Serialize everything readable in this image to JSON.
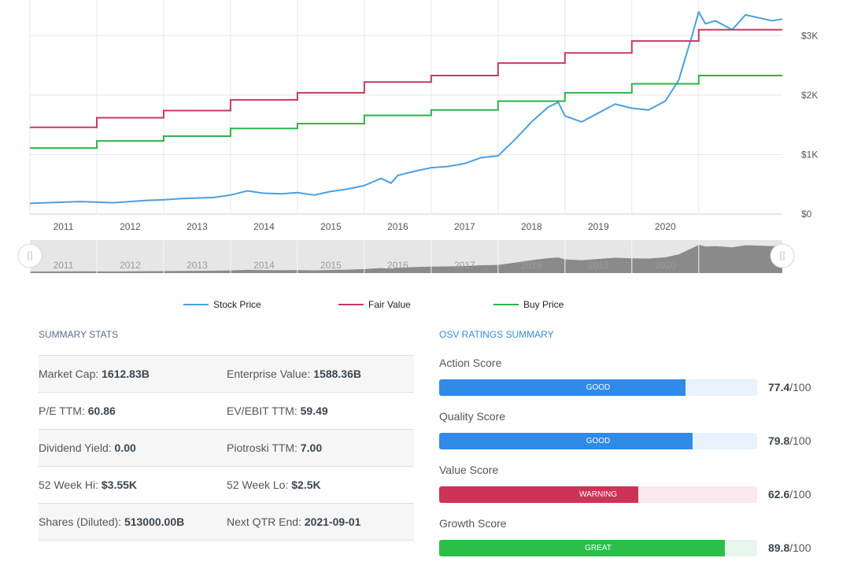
{
  "chart_data": {
    "type": "line",
    "x_ticks": [
      "2011",
      "2012",
      "2013",
      "2014",
      "2015",
      "2016",
      "2017",
      "2018",
      "2019",
      "2020"
    ],
    "y_ticks": [
      "$0",
      "$1K",
      "$2K",
      "$3K"
    ],
    "ylim": [
      0,
      3600
    ],
    "xlim": [
      2010.5,
      2021.75
    ],
    "legend_position": "bottom",
    "grid": true,
    "series": [
      {
        "name": "Stock Price",
        "color": "#4a9fe0",
        "points": [
          [
            2010.5,
            180
          ],
          [
            2010.75,
            190
          ],
          [
            2011.0,
            200
          ],
          [
            2011.25,
            210
          ],
          [
            2011.5,
            200
          ],
          [
            2011.75,
            190
          ],
          [
            2012.0,
            210
          ],
          [
            2012.25,
            230
          ],
          [
            2012.5,
            240
          ],
          [
            2012.75,
            260
          ],
          [
            2013.0,
            270
          ],
          [
            2013.25,
            280
          ],
          [
            2013.5,
            320
          ],
          [
            2013.75,
            390
          ],
          [
            2014.0,
            350
          ],
          [
            2014.25,
            340
          ],
          [
            2014.5,
            360
          ],
          [
            2014.75,
            320
          ],
          [
            2015.0,
            380
          ],
          [
            2015.25,
            420
          ],
          [
            2015.5,
            480
          ],
          [
            2015.75,
            600
          ],
          [
            2015.9,
            520
          ],
          [
            2016.0,
            650
          ],
          [
            2016.25,
            720
          ],
          [
            2016.5,
            780
          ],
          [
            2016.75,
            800
          ],
          [
            2017.0,
            850
          ],
          [
            2017.25,
            950
          ],
          [
            2017.5,
            980
          ],
          [
            2017.75,
            1250
          ],
          [
            2018.0,
            1550
          ],
          [
            2018.25,
            1800
          ],
          [
            2018.4,
            1880
          ],
          [
            2018.5,
            1650
          ],
          [
            2018.75,
            1550
          ],
          [
            2019.0,
            1700
          ],
          [
            2019.25,
            1850
          ],
          [
            2019.5,
            1780
          ],
          [
            2019.75,
            1750
          ],
          [
            2020.0,
            1900
          ],
          [
            2020.2,
            2250
          ],
          [
            2020.4,
            3000
          ],
          [
            2020.5,
            3400
          ],
          [
            2020.6,
            3200
          ],
          [
            2020.75,
            3250
          ],
          [
            2021.0,
            3100
          ],
          [
            2021.2,
            3350
          ],
          [
            2021.4,
            3300
          ],
          [
            2021.6,
            3250
          ],
          [
            2021.75,
            3280
          ]
        ]
      },
      {
        "name": "Fair Value",
        "color": "#c83a5e",
        "steps": [
          [
            2010.5,
            1460
          ],
          [
            2011.5,
            1620
          ],
          [
            2012.5,
            1740
          ],
          [
            2013.5,
            1920
          ],
          [
            2014.5,
            2040
          ],
          [
            2015.5,
            2220
          ],
          [
            2016.5,
            2330
          ],
          [
            2017.5,
            2540
          ],
          [
            2018.5,
            2710
          ],
          [
            2019.5,
            2910
          ],
          [
            2020.5,
            3100
          ]
        ]
      },
      {
        "name": "Buy Price",
        "color": "#2bb44a",
        "steps": [
          [
            2010.5,
            1110
          ],
          [
            2011.5,
            1230
          ],
          [
            2012.5,
            1310
          ],
          [
            2013.5,
            1440
          ],
          [
            2014.5,
            1520
          ],
          [
            2015.5,
            1660
          ],
          [
            2016.5,
            1750
          ],
          [
            2017.5,
            1900
          ],
          [
            2018.5,
            2040
          ],
          [
            2019.5,
            2190
          ],
          [
            2020.5,
            2330
          ]
        ]
      }
    ]
  },
  "legend": {
    "stock_price": "Stock Price",
    "fair_value": "Fair Value",
    "buy_price": "Buy Price"
  },
  "summary_stats": {
    "title": "SUMMARY STATS",
    "rows": [
      {
        "left_label": "Market Cap: ",
        "left_value": "1612.83B",
        "right_label": "Enterprise Value: ",
        "right_value": "1588.36B"
      },
      {
        "left_label": "P/E TTM: ",
        "left_value": "60.86",
        "right_label": "EV/EBIT TTM: ",
        "right_value": "59.49"
      },
      {
        "left_label": "Dividend Yield: ",
        "left_value": "0.00",
        "right_label": "Piotroski TTM: ",
        "right_value": "7.00"
      },
      {
        "left_label": "52 Week Hi: ",
        "left_value": "$3.55K",
        "right_label": "52 Week Lo: ",
        "right_value": "$2.5K"
      },
      {
        "left_label": "Shares (Diluted): ",
        "left_value": "513000.00B",
        "right_label": "Next QTR End: ",
        "right_value": "2021-09-01"
      }
    ]
  },
  "ratings": {
    "title": "OSV RATINGS SUMMARY",
    "scores": [
      {
        "name": "Action Score",
        "badge": "GOOD",
        "value": "77.4",
        "suffix": "/100",
        "fraction": 0.774,
        "color": "#2f8ae8",
        "track": "#e8f2fc"
      },
      {
        "name": "Quality Score",
        "badge": "GOOD",
        "value": "79.8",
        "suffix": "/100",
        "fraction": 0.798,
        "color": "#2f8ae8",
        "track": "#e8f2fc"
      },
      {
        "name": "Value Score",
        "badge": "WARNING",
        "value": "62.6",
        "suffix": "/100",
        "fraction": 0.626,
        "color": "#cc3357",
        "track": "#fbe8ec"
      },
      {
        "name": "Growth Score",
        "badge": "GREAT",
        "value": "89.8",
        "suffix": "/100",
        "fraction": 0.898,
        "color": "#2bbf4a",
        "track": "#e6f6ea"
      }
    ]
  }
}
